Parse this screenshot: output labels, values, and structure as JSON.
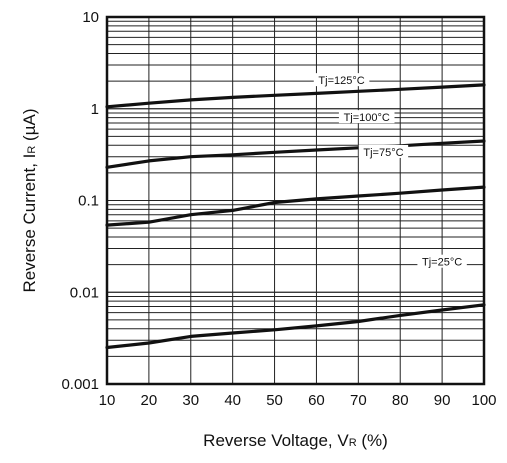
{
  "chart_data": {
    "type": "line",
    "xscale": "linear",
    "yscale": "log",
    "xlim": [
      10,
      100
    ],
    "ylim": [
      0.001,
      10
    ],
    "grid": true,
    "legend": "none",
    "xticks": [
      "10",
      "20",
      "30",
      "40",
      "50",
      "60",
      "70",
      "80",
      "90",
      "100"
    ],
    "yticks": [
      "0.001",
      "0.01",
      "0.1",
      "1",
      "10"
    ],
    "xlabel": {
      "main": "Reverse Voltage, V",
      "sub": "R",
      "tail": " (%)"
    },
    "ylabel": {
      "main": "Reverse Current, I",
      "sub": "R",
      "tail": " (µA)"
    },
    "line_color": "#111111",
    "grid_color": "#222222",
    "series": [
      {
        "label": "Tj=125°C",
        "label_at": [
          66,
          2.0
        ],
        "x": [
          10,
          20,
          30,
          40,
          50,
          60,
          70,
          80,
          90,
          100
        ],
        "y": [
          1.05,
          1.15,
          1.25,
          1.33,
          1.4,
          1.47,
          1.55,
          1.63,
          1.72,
          1.82
        ]
      },
      {
        "label": "Tj=100°C",
        "label_at": [
          72,
          0.79
        ],
        "x": [
          10,
          20,
          30,
          40,
          50,
          60,
          70,
          80,
          90,
          100
        ],
        "y": [
          0.23,
          0.27,
          0.3,
          0.315,
          0.335,
          0.355,
          0.375,
          0.395,
          0.42,
          0.445
        ]
      },
      {
        "label": "Tj=75°C",
        "label_at": [
          76,
          0.33
        ],
        "x": [
          10,
          20,
          30,
          40,
          50,
          60,
          70,
          80,
          90,
          100
        ],
        "y": [
          0.054,
          0.058,
          0.07,
          0.078,
          0.095,
          0.104,
          0.112,
          0.12,
          0.13,
          0.14
        ]
      },
      {
        "label": "Tj=25°C",
        "label_at": [
          90,
          0.021
        ],
        "x": [
          10,
          20,
          30,
          40,
          50,
          60,
          70,
          80,
          90,
          100
        ],
        "y": [
          0.0025,
          0.0028,
          0.0033,
          0.0036,
          0.0039,
          0.0043,
          0.0048,
          0.0056,
          0.0064,
          0.0073
        ]
      }
    ]
  }
}
